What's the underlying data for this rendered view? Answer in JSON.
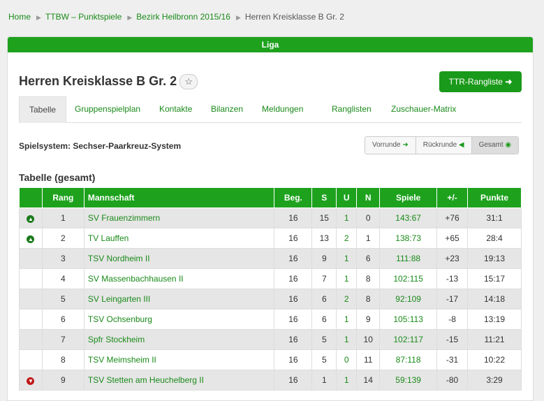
{
  "breadcrumb": [
    "Home",
    "TTBW – Punktspiele",
    "Bezirk Heilbronn 2015/16",
    "Herren Kreisklasse B Gr. 2"
  ],
  "banner": "Liga",
  "title": "Herren Kreisklasse B Gr. 2",
  "button": "TTR-Rangliste",
  "tabs": [
    "Tabelle",
    "Gruppenspielplan",
    "Kontakte",
    "Bilanzen",
    "Meldungen",
    "Ranglisten",
    "Zuschauer-Matrix"
  ],
  "active_tab": 0,
  "system": "Spielsystem: Sechser-Paarkreuz-System",
  "round_buttons": [
    "Vorrunde",
    "Rückrunde",
    "Gesamt"
  ],
  "active_round": 2,
  "table": {
    "title": "Tabelle (gesamt)",
    "headers": [
      "Rang",
      "Mannschaft",
      "Beg.",
      "S",
      "U",
      "N",
      "Spiele",
      "+/-",
      "Punkte"
    ],
    "rows": [
      [
        1,
        "SV Frauenzimmern",
        16,
        15,
        1,
        0,
        "143:67",
        "+76",
        "31:1"
      ],
      [
        2,
        "TV Lauffen",
        16,
        13,
        2,
        1,
        "138:73",
        "+65",
        "28:4"
      ],
      [
        3,
        "TSV Nordheim II",
        16,
        9,
        1,
        6,
        "111:88",
        "+23",
        "19:13"
      ],
      [
        4,
        "SV Massenbachhausen II",
        16,
        7,
        1,
        8,
        "102:115",
        "-13",
        "15:17"
      ],
      [
        5,
        "SV Leingarten III",
        16,
        6,
        2,
        8,
        "92:109",
        "-17",
        "14:18"
      ],
      [
        6,
        "TSV Ochsenburg",
        16,
        6,
        1,
        9,
        "105:113",
        "-8",
        "13:19"
      ],
      [
        7,
        "Spfr Stockheim",
        16,
        5,
        1,
        10,
        "102:117",
        "-15",
        "11:21"
      ],
      [
        8,
        "TSV Meimsheim II",
        16,
        5,
        0,
        11,
        "87:118",
        "-31",
        "10:22"
      ],
      [
        9,
        "TSV Stetten am Heuchelberg II",
        16,
        1,
        1,
        14,
        "59:139",
        "-80",
        "3:29"
      ]
    ],
    "trend": [
      "up",
      "up",
      null,
      null,
      null,
      null,
      null,
      null,
      "down"
    ]
  }
}
